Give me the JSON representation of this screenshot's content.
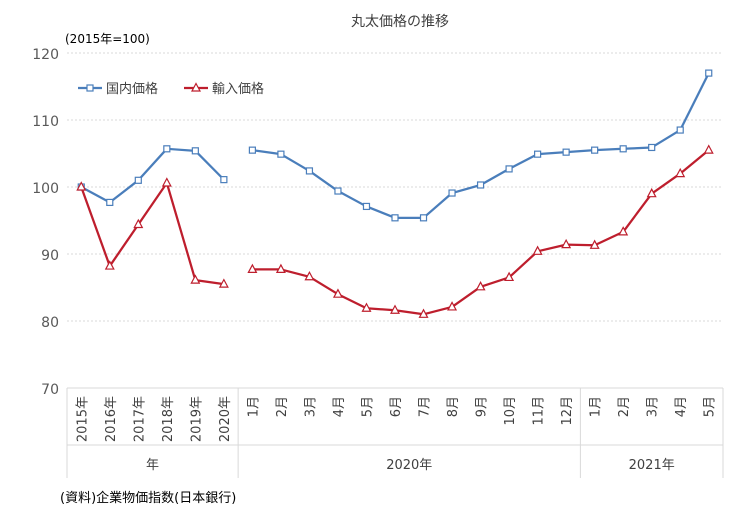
{
  "chart_data": {
    "type": "line",
    "title": "丸太価格の推移",
    "unit_note": "(2015年=100)",
    "source": "(資料)企業物価指数(日本銀行)",
    "ylim": [
      70,
      120
    ],
    "yticks": [
      70,
      80,
      90,
      100,
      110,
      120
    ],
    "grid": true,
    "legend_position": "top-left",
    "categories": [
      "2015年",
      "2016年",
      "2017年",
      "2018年",
      "2019年",
      "2020年",
      "1月",
      "2月",
      "3月",
      "4月",
      "5月",
      "6月",
      "7月",
      "8月",
      "9月",
      "10月",
      "11月",
      "12月",
      "1月",
      "2月",
      "3月",
      "4月",
      "5月"
    ],
    "category_groups": [
      {
        "label": "年",
        "count": 6
      },
      {
        "label": "2020年",
        "count": 12
      },
      {
        "label": "2021年",
        "count": 5
      }
    ],
    "series": [
      {
        "name": "国内価格",
        "color": "#4a7ebb",
        "marker": "square",
        "values": [
          100.0,
          97.7,
          101.0,
          105.7,
          105.4,
          101.1,
          105.5,
          104.9,
          102.4,
          99.4,
          97.1,
          95.4,
          95.4,
          99.1,
          100.3,
          102.7,
          104.9,
          105.2,
          105.5,
          105.7,
          105.9,
          108.5,
          117.0
        ]
      },
      {
        "name": "輸入価格",
        "color": "#be1e2d",
        "marker": "triangle",
        "values": [
          100.0,
          88.2,
          94.4,
          100.6,
          86.1,
          85.5,
          87.7,
          87.7,
          86.6,
          84.0,
          81.9,
          81.6,
          81.0,
          82.1,
          85.1,
          86.5,
          90.4,
          91.4,
          91.3,
          93.3,
          99.0,
          102.0,
          105.5
        ]
      }
    ]
  }
}
